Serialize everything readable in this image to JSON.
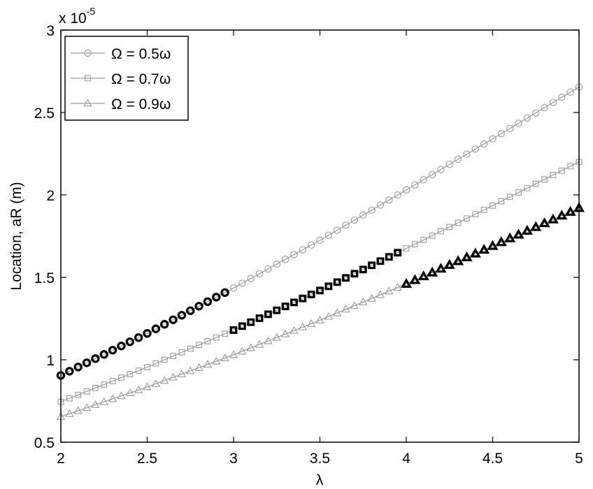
{
  "chart_data": {
    "type": "line",
    "xlabel": "λ",
    "ylabel": "Location, aR (m)",
    "y_multiplier": "x 10",
    "y_multiplier_exponent": "-5",
    "xlim": [
      2,
      5
    ],
    "ylim": [
      0.5,
      3
    ],
    "x_ticks": [
      "2",
      "2.5",
      "3",
      "3.5",
      "4",
      "4.5",
      "5"
    ],
    "y_ticks": [
      "0.5",
      "1",
      "1.5",
      "2",
      "2.5",
      "3"
    ],
    "grid": false,
    "legend_position": "top-left",
    "series": [
      {
        "name": "Ω = 0.5ω",
        "marker": "circle",
        "highlight_range": [
          2,
          2.95
        ],
        "x": [
          2.0,
          2.5,
          3.0,
          3.5,
          4.0,
          4.5,
          5.0
        ],
        "y": [
          0.905,
          1.16,
          1.435,
          1.725,
          2.03,
          2.34,
          2.655
        ]
      },
      {
        "name": "Ω = 0.7ω",
        "marker": "square",
        "highlight_range": [
          3,
          3.95
        ],
        "x": [
          2.0,
          2.5,
          3.0,
          3.5,
          4.0,
          4.5,
          5.0
        ],
        "y": [
          0.745,
          0.955,
          1.18,
          1.42,
          1.675,
          1.935,
          2.2
        ]
      },
      {
        "name": "Ω = 0.9ω",
        "marker": "triangle",
        "highlight_range": [
          4,
          5
        ],
        "x": [
          2.0,
          2.5,
          3.0,
          3.5,
          4.0,
          4.5,
          5.0
        ],
        "y": [
          0.655,
          0.835,
          1.03,
          1.24,
          1.46,
          1.69,
          1.92
        ]
      }
    ],
    "colors": {
      "normal": "#9a9a9a",
      "highlight": "#000000"
    }
  }
}
